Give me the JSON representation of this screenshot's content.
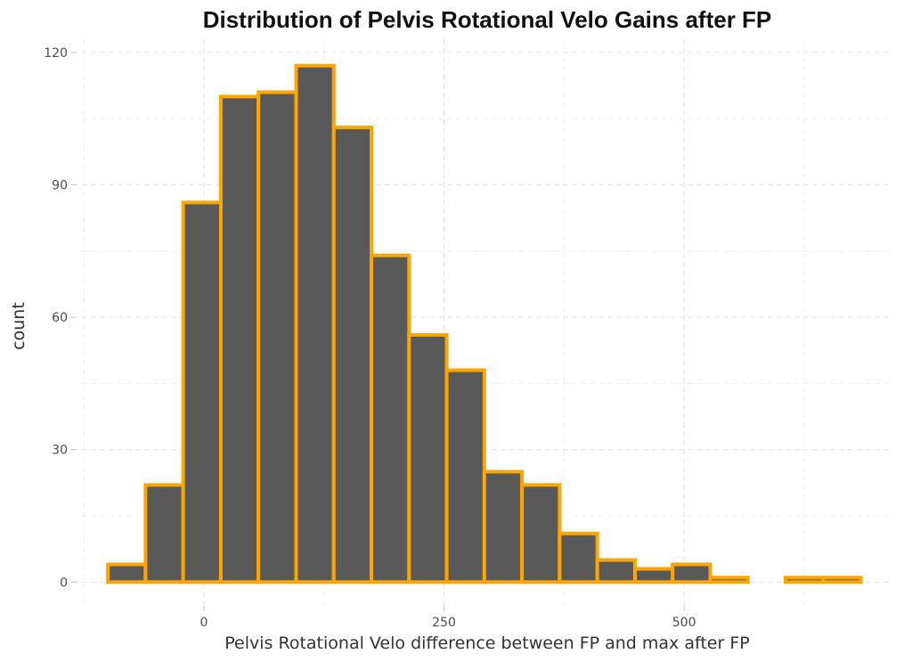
{
  "chart_data": {
    "type": "bar",
    "title": "Distribution of Pelvis Rotational Velo Gains after FP",
    "xlabel": "Pelvis Rotational Velo difference between FP and max after FP",
    "ylabel": "count",
    "xlim": [
      -127,
      715
    ],
    "ylim": [
      -6,
      123
    ],
    "x_ticks": [
      0,
      250,
      500
    ],
    "y_ticks": [
      0,
      30,
      60,
      90,
      120
    ],
    "bin_width": 39.2,
    "bins": [
      {
        "x0": -100,
        "x1": -60.8,
        "count": 4
      },
      {
        "x0": -60.8,
        "x1": -21.6,
        "count": 22
      },
      {
        "x0": -21.6,
        "x1": 17.6,
        "count": 86
      },
      {
        "x0": 17.6,
        "x1": 56.8,
        "count": 110
      },
      {
        "x0": 56.8,
        "x1": 96.0,
        "count": 111
      },
      {
        "x0": 96.0,
        "x1": 135.2,
        "count": 117
      },
      {
        "x0": 135.2,
        "x1": 174.4,
        "count": 103
      },
      {
        "x0": 174.4,
        "x1": 213.6,
        "count": 74
      },
      {
        "x0": 213.6,
        "x1": 252.8,
        "count": 56
      },
      {
        "x0": 252.8,
        "x1": 292.0,
        "count": 48
      },
      {
        "x0": 292.0,
        "x1": 331.2,
        "count": 25
      },
      {
        "x0": 331.2,
        "x1": 370.4,
        "count": 22
      },
      {
        "x0": 370.4,
        "x1": 409.6,
        "count": 11
      },
      {
        "x0": 409.6,
        "x1": 448.8,
        "count": 5
      },
      {
        "x0": 448.8,
        "x1": 488.0,
        "count": 3
      },
      {
        "x0": 488.0,
        "x1": 527.2,
        "count": 4
      },
      {
        "x0": 527.2,
        "x1": 566.4,
        "count": 1
      },
      {
        "x0": 566.4,
        "x1": 605.6,
        "count": 0
      },
      {
        "x0": 605.6,
        "x1": 644.8,
        "count": 1
      },
      {
        "x0": 644.8,
        "x1": 684.0,
        "count": 1
      }
    ],
    "grid": true,
    "legend": "none",
    "bar_fill": "#595959",
    "bar_outline": "#FFA500"
  }
}
